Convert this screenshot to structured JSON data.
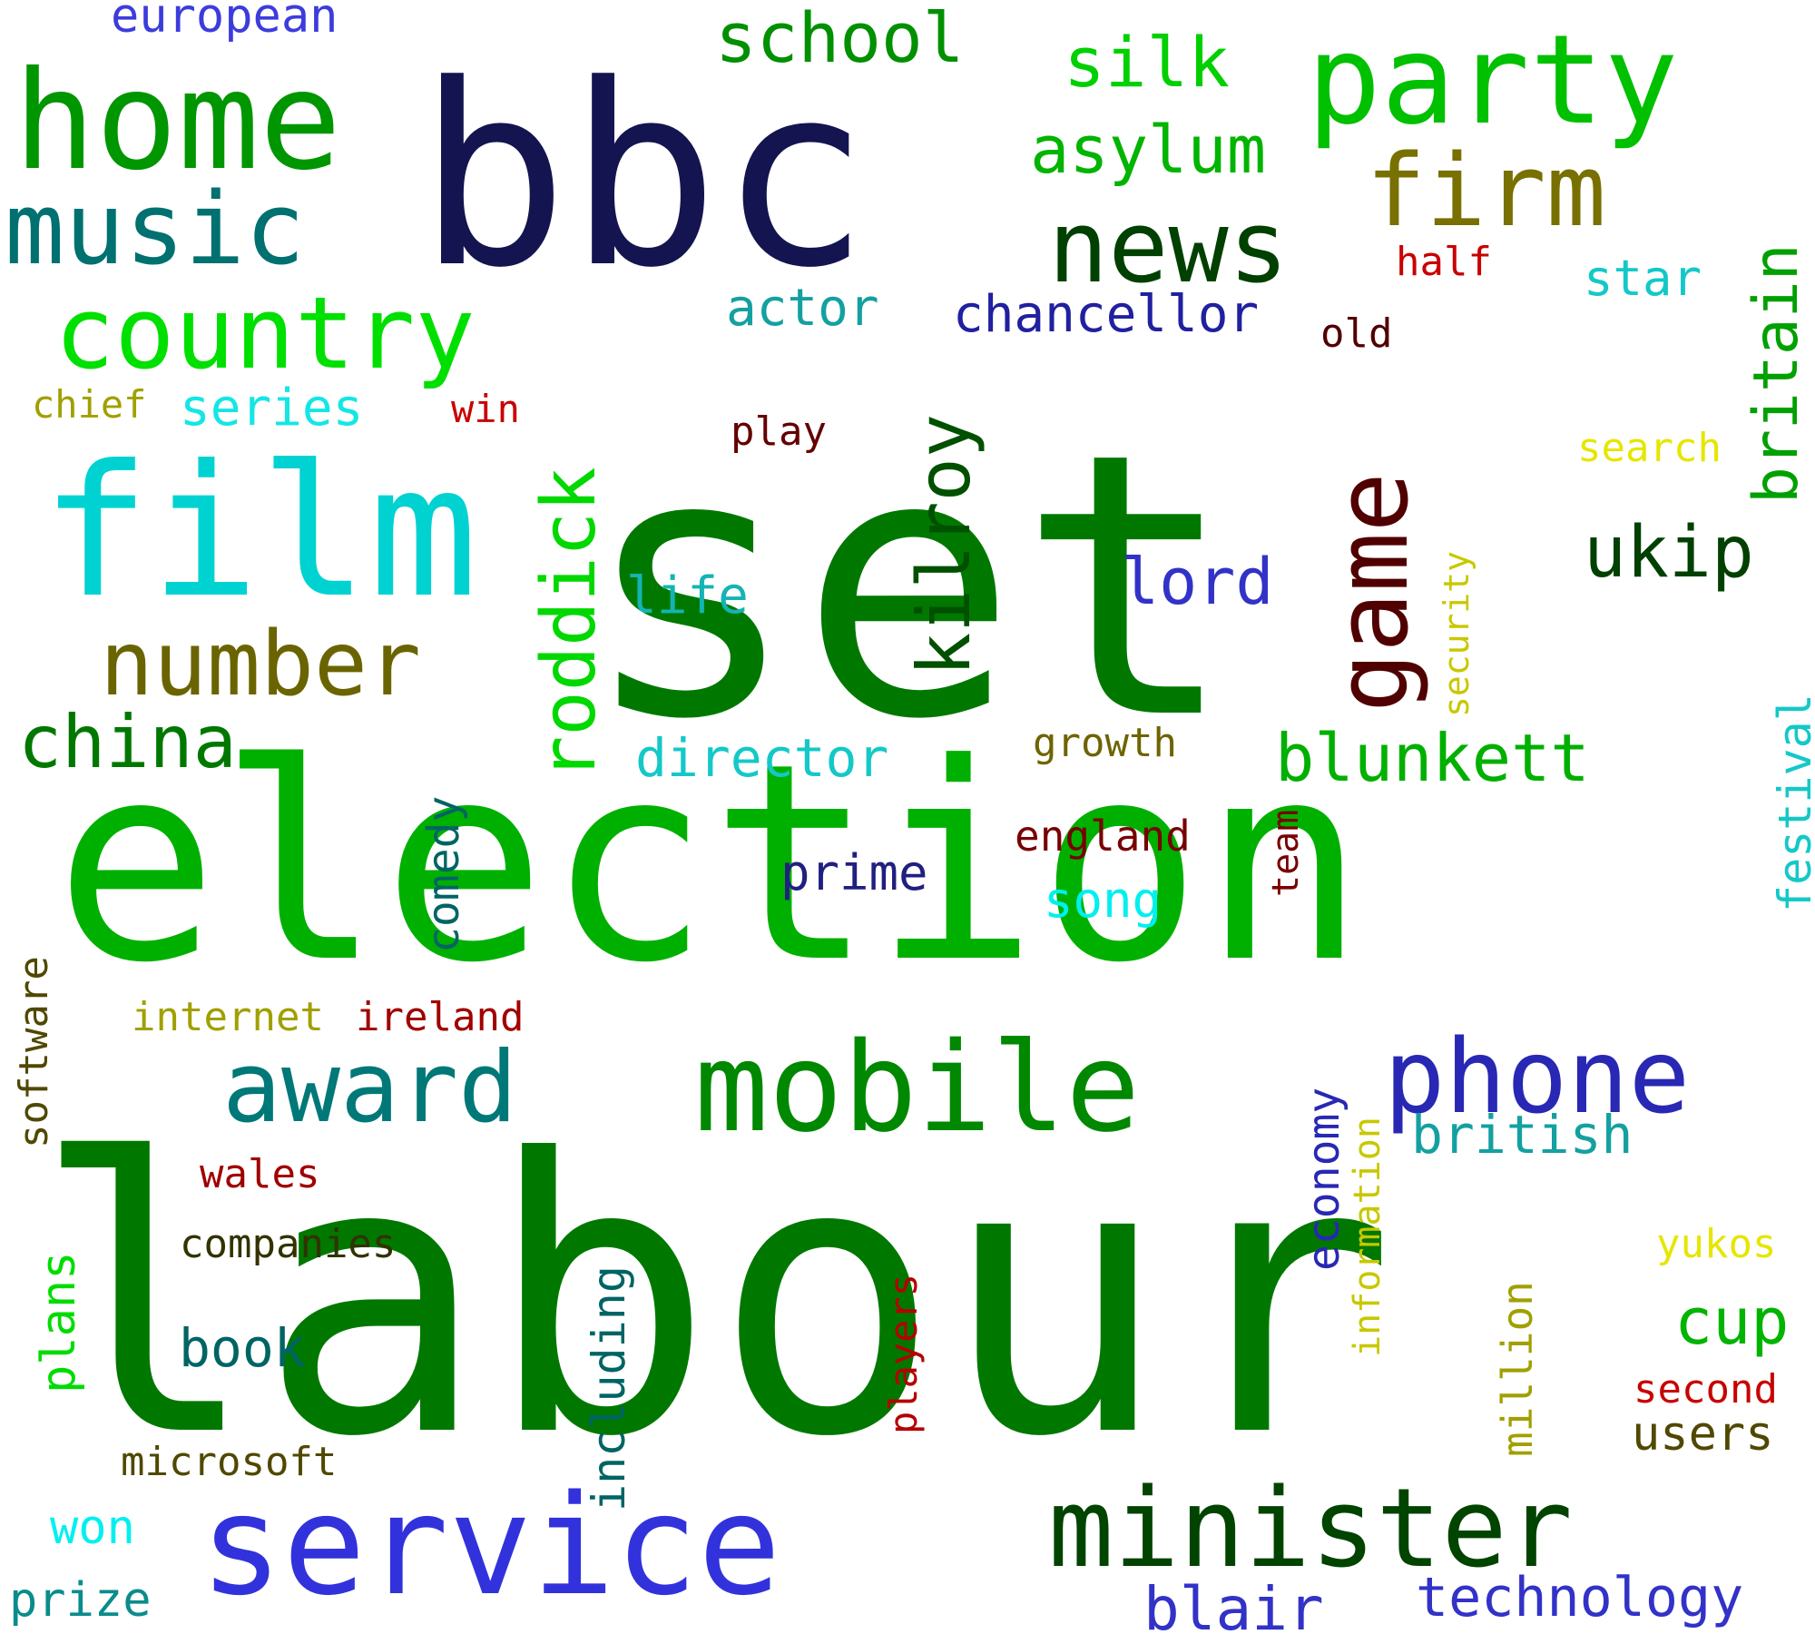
{
  "words": [
    {
      "text": "set",
      "color": "#007800",
      "rotated": false
    },
    {
      "text": "labour",
      "color": "#007800",
      "rotated": false
    },
    {
      "text": "election",
      "color": "#00b000",
      "rotated": false
    },
    {
      "text": "bbc",
      "color": "#141450",
      "rotated": false
    },
    {
      "text": "film",
      "color": "#00d2d2",
      "rotated": false
    },
    {
      "text": "service",
      "color": "#3232dc",
      "rotated": false
    },
    {
      "text": "home",
      "color": "#009600",
      "rotated": false
    },
    {
      "text": "party",
      "color": "#00c000",
      "rotated": false
    },
    {
      "text": "mobile",
      "color": "#008800",
      "rotated": false
    },
    {
      "text": "minister",
      "color": "#004400",
      "rotated": false
    },
    {
      "text": "music",
      "color": "#007070",
      "rotated": false
    },
    {
      "text": "country",
      "color": "#00e000",
      "rotated": false
    },
    {
      "text": "news",
      "color": "#004000",
      "rotated": false
    },
    {
      "text": "phone",
      "color": "#2828b4",
      "rotated": false
    },
    {
      "text": "award",
      "color": "#007878",
      "rotated": false
    },
    {
      "text": "firm",
      "color": "#787000",
      "rotated": false
    },
    {
      "text": "number",
      "color": "#6a6400",
      "rotated": false
    },
    {
      "text": "game",
      "color": "#500000",
      "rotated": true
    },
    {
      "text": "roddick",
      "color": "#00d800",
      "rotated": true
    },
    {
      "text": "kilroy",
      "color": "#005000",
      "rotated": true
    },
    {
      "text": "school",
      "color": "#009000",
      "rotated": false
    },
    {
      "text": "silk",
      "color": "#00d000",
      "rotated": false
    },
    {
      "text": "asylum",
      "color": "#00b400",
      "rotated": false
    },
    {
      "text": "china",
      "color": "#007800",
      "rotated": false
    },
    {
      "text": "ukip",
      "color": "#004000",
      "rotated": false
    },
    {
      "text": "lord",
      "color": "#3232c8",
      "rotated": false
    },
    {
      "text": "britain",
      "color": "#00a000",
      "rotated": true
    },
    {
      "text": "blunkett",
      "color": "#00b000",
      "rotated": false
    },
    {
      "text": "cup",
      "color": "#00b400",
      "rotated": false
    },
    {
      "text": "blair",
      "color": "#3232c8",
      "rotated": false
    },
    {
      "text": "technology",
      "color": "#3232c8",
      "rotated": false
    },
    {
      "text": "british",
      "color": "#14a0a0",
      "rotated": false
    },
    {
      "text": "actor",
      "color": "#14a0a0",
      "rotated": false
    },
    {
      "text": "chancellor",
      "color": "#2020a0",
      "rotated": false
    },
    {
      "text": "director",
      "color": "#14c8c8",
      "rotated": false
    },
    {
      "text": "prime",
      "color": "#202080",
      "rotated": false
    },
    {
      "text": "song",
      "color": "#00f0f0",
      "rotated": false
    },
    {
      "text": "star",
      "color": "#14c8c8",
      "rotated": false
    },
    {
      "text": "festival",
      "color": "#14c8c8",
      "rotated": true
    },
    {
      "text": "series",
      "color": "#14e6e6",
      "rotated": false
    },
    {
      "text": "life",
      "color": "#14b4b4",
      "rotated": false
    },
    {
      "text": "european",
      "color": "#3c3cdc",
      "rotated": false
    },
    {
      "text": "comedy",
      "color": "#006464",
      "rotated": true
    },
    {
      "text": "economy",
      "color": "#2828b4",
      "rotated": true
    },
    {
      "text": "including",
      "color": "#006464",
      "rotated": true
    },
    {
      "text": "plans",
      "color": "#00dc00",
      "rotated": true
    },
    {
      "text": "software",
      "color": "#504800",
      "rotated": true
    },
    {
      "text": "book",
      "color": "#006464",
      "rotated": false
    },
    {
      "text": "users",
      "color": "#504800",
      "rotated": false
    },
    {
      "text": "million",
      "color": "#a0a000",
      "rotated": true
    },
    {
      "text": "information",
      "color": "#c8c800",
      "rotated": true
    },
    {
      "text": "security",
      "color": "#c8c800",
      "rotated": true
    },
    {
      "text": "search",
      "color": "#e6e600",
      "rotated": false
    },
    {
      "text": "yukos",
      "color": "#e6e600",
      "rotated": false
    },
    {
      "text": "players",
      "color": "#b40000",
      "rotated": true
    },
    {
      "text": "growth",
      "color": "#6e6400",
      "rotated": false
    },
    {
      "text": "england",
      "color": "#780000",
      "rotated": false
    },
    {
      "text": "team",
      "color": "#780000",
      "rotated": true
    },
    {
      "text": "half",
      "color": "#c80000",
      "rotated": false
    },
    {
      "text": "old",
      "color": "#500000",
      "rotated": false
    },
    {
      "text": "win",
      "color": "#c80000",
      "rotated": false
    },
    {
      "text": "play",
      "color": "#640000",
      "rotated": false
    },
    {
      "text": "chief",
      "color": "#a0a000",
      "rotated": false
    },
    {
      "text": "internet",
      "color": "#a0a000",
      "rotated": false
    },
    {
      "text": "ireland",
      "color": "#a00000",
      "rotated": false
    },
    {
      "text": "wales",
      "color": "#a00000",
      "rotated": false
    },
    {
      "text": "companies",
      "color": "#323200",
      "rotated": false
    },
    {
      "text": "microsoft",
      "color": "#504800",
      "rotated": false
    },
    {
      "text": "won",
      "color": "#00f0f0",
      "rotated": false
    },
    {
      "text": "prize",
      "color": "#0a8c8c",
      "rotated": false
    },
    {
      "text": "second",
      "color": "#c80000",
      "rotated": false
    }
  ]
}
